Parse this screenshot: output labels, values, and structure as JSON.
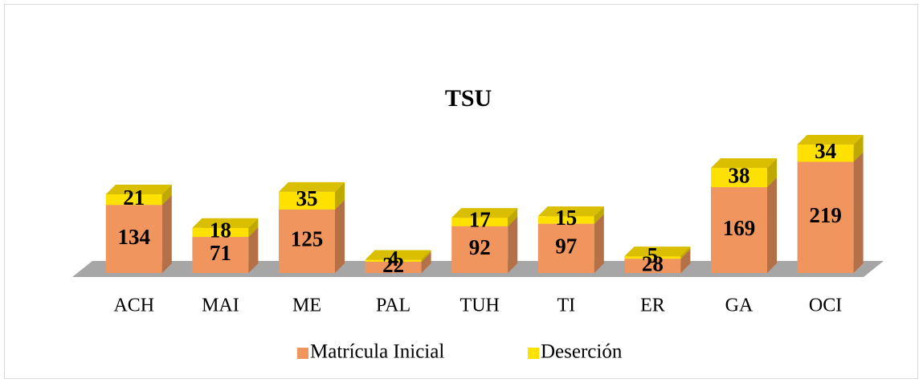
{
  "chart_data": {
    "type": "bar3d_stacked",
    "title": "TSU",
    "categories": [
      "ACH",
      "MAI",
      "ME",
      "PAL",
      "TUH",
      "TI",
      "ER",
      "GA",
      "OCI"
    ],
    "series": [
      {
        "name": "Matrícula Inicial",
        "color": "#f0955e",
        "values": [
          134,
          71,
          125,
          22,
          92,
          97,
          28,
          169,
          219
        ]
      },
      {
        "name": "Deserción",
        "color": "#ffe100",
        "values": [
          21,
          18,
          35,
          4,
          17,
          15,
          5,
          38,
          34
        ]
      }
    ],
    "legend": "bottom"
  }
}
